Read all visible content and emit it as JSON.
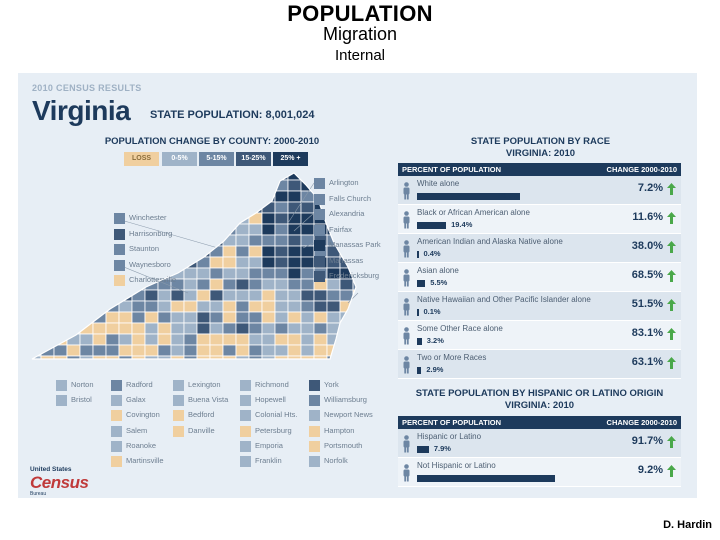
{
  "slide": {
    "title": "POPULATION",
    "subtitle": "Migration",
    "subtitle2": "Internal",
    "footer": "D. Hardin"
  },
  "poster": {
    "header": "2010 CENSUS RESULTS",
    "state": "Virginia",
    "state_population": "STATE POPULATION: 8,001,024",
    "map_title": "POPULATION CHANGE BY COUNTY: 2000-2010",
    "race_title_1": "STATE POPULATION BY RACE",
    "race_title_2": "VIRGINIA: 2010",
    "hisp_title_1": "STATE POPULATION BY HISPANIC OR LATINO ORIGIN",
    "hisp_title_2": "VIRGINIA: 2010",
    "logo_top": "United States",
    "logo_main": "Census",
    "logo_sub": "Bureau"
  },
  "legend": [
    {
      "label": "LOSS",
      "color": "#f0cf9f"
    },
    {
      "label": "0-5%",
      "color": "#9fb3c8"
    },
    {
      "label": "5-15%",
      "color": "#6d86a3"
    },
    {
      "label": "15-25%",
      "color": "#3e5878"
    },
    {
      "label": "25% +",
      "color": "#1d3a5c"
    }
  ],
  "colors": {
    "loss": "#f0cf9f",
    "low": "#9fb3c8",
    "mid": "#6d86a3",
    "high": "#3e5878",
    "top": "#1d3a5c",
    "navy": "#1d3a5c",
    "arrow": "#4aa84a"
  },
  "counties_right": [
    {
      "name": "Arlington",
      "level": "mid"
    },
    {
      "name": "Falls Church",
      "level": "mid"
    },
    {
      "name": "Alexandria",
      "level": "mid"
    },
    {
      "name": "Fairfax",
      "level": "mid"
    },
    {
      "name": "Manassas Park",
      "level": "top"
    },
    {
      "name": "Manassas",
      "level": "high"
    },
    {
      "name": "Fredericksburg",
      "level": "high"
    }
  ],
  "counties_left": [
    {
      "name": "Winchester",
      "level": "mid"
    },
    {
      "name": "Harrisonburg",
      "level": "high"
    },
    {
      "name": "Staunton",
      "level": "mid"
    },
    {
      "name": "Waynesboro",
      "level": "mid"
    },
    {
      "name": "Charlottesville",
      "level": "loss"
    }
  ],
  "counties_bottom": [
    [
      {
        "name": "Norton",
        "level": "low"
      },
      {
        "name": "Bristol",
        "level": "low"
      }
    ],
    [
      {
        "name": "Radford",
        "level": "mid"
      },
      {
        "name": "Galax",
        "level": "low"
      },
      {
        "name": "Covington",
        "level": "loss"
      },
      {
        "name": "Salem",
        "level": "low"
      },
      {
        "name": "Roanoke",
        "level": "low"
      },
      {
        "name": "Martinsville",
        "level": "loss"
      }
    ],
    [
      {
        "name": "Lexington",
        "level": "low"
      },
      {
        "name": "Buena Vista",
        "level": "low"
      },
      {
        "name": "Bedford",
        "level": "loss"
      },
      {
        "name": "Danville",
        "level": "loss"
      }
    ],
    [
      {
        "name": "Richmond",
        "level": "low"
      },
      {
        "name": "Hopewell",
        "level": "low"
      },
      {
        "name": "Colonial Hts.",
        "level": "low"
      },
      {
        "name": "Petersburg",
        "level": "loss"
      },
      {
        "name": "Emporia",
        "level": "low"
      },
      {
        "name": "Franklin",
        "level": "low"
      }
    ],
    [
      {
        "name": "York",
        "level": "high"
      },
      {
        "name": "Williamsburg",
        "level": "mid"
      },
      {
        "name": "Newport News",
        "level": "low"
      },
      {
        "name": "Hampton",
        "level": "loss"
      },
      {
        "name": "Portsmouth",
        "level": "loss"
      },
      {
        "name": "Norfolk",
        "level": "low"
      }
    ]
  ],
  "race_table": {
    "col1": "PERCENT OF POPULATION",
    "col2": "CHANGE 2000-2010",
    "rows": [
      {
        "label": "White alone",
        "pct": 68.6,
        "pct_text": "68.6%",
        "change": "7.2%"
      },
      {
        "label": "Black or African American alone",
        "pct": 19.4,
        "pct_text": "19.4%",
        "change": "11.6%"
      },
      {
        "label": "American Indian and Alaska Native alone",
        "pct": 0.4,
        "pct_text": "0.4%",
        "change": "38.0%"
      },
      {
        "label": "Asian alone",
        "pct": 5.5,
        "pct_text": "5.5%",
        "change": "68.5%"
      },
      {
        "label": "Native Hawaiian and Other Pacific Islander alone",
        "pct": 0.1,
        "pct_text": "0.1%",
        "change": "51.5%"
      },
      {
        "label": "Some Other Race alone",
        "pct": 3.2,
        "pct_text": "3.2%",
        "change": "83.1%"
      },
      {
        "label": "Two or More Races",
        "pct": 2.9,
        "pct_text": "2.9%",
        "change": "63.1%"
      }
    ]
  },
  "hisp_table": {
    "col1": "PERCENT OF POPULATION",
    "col2": "CHANGE 2000-2010",
    "rows": [
      {
        "label": "Hispanic or Latino",
        "pct": 7.9,
        "pct_text": "7.9%",
        "change": "91.7%"
      },
      {
        "label": "Not Hispanic or Latino",
        "pct": 92.1,
        "pct_text": "92.1%",
        "change": "9.2%"
      }
    ]
  },
  "chart_data": [
    {
      "type": "bar",
      "title": "STATE POPULATION BY RACE — VIRGINIA: 2010",
      "xlabel": "",
      "ylabel": "Percent of population",
      "categories": [
        "White alone",
        "Black or African American alone",
        "American Indian and Alaska Native alone",
        "Asian alone",
        "Native Hawaiian and Other Pacific Islander alone",
        "Some Other Race alone",
        "Two or More Races"
      ],
      "series": [
        {
          "name": "Percent of population",
          "values": [
            68.6,
            19.4,
            0.4,
            5.5,
            0.1,
            3.2,
            2.9
          ]
        },
        {
          "name": "Change 2000-2010",
          "values": [
            7.2,
            11.6,
            38.0,
            68.5,
            51.5,
            83.1,
            63.1
          ]
        }
      ],
      "ylim": [
        0,
        100
      ]
    },
    {
      "type": "bar",
      "title": "STATE POPULATION BY HISPANIC OR LATINO ORIGIN — VIRGINIA: 2010",
      "xlabel": "",
      "ylabel": "Percent of population",
      "categories": [
        "Hispanic or Latino",
        "Not Hispanic or Latino"
      ],
      "series": [
        {
          "name": "Percent of population",
          "values": [
            7.9,
            92.1
          ]
        },
        {
          "name": "Change 2000-2010",
          "values": [
            91.7,
            9.2
          ]
        }
      ],
      "ylim": [
        0,
        100
      ]
    }
  ]
}
